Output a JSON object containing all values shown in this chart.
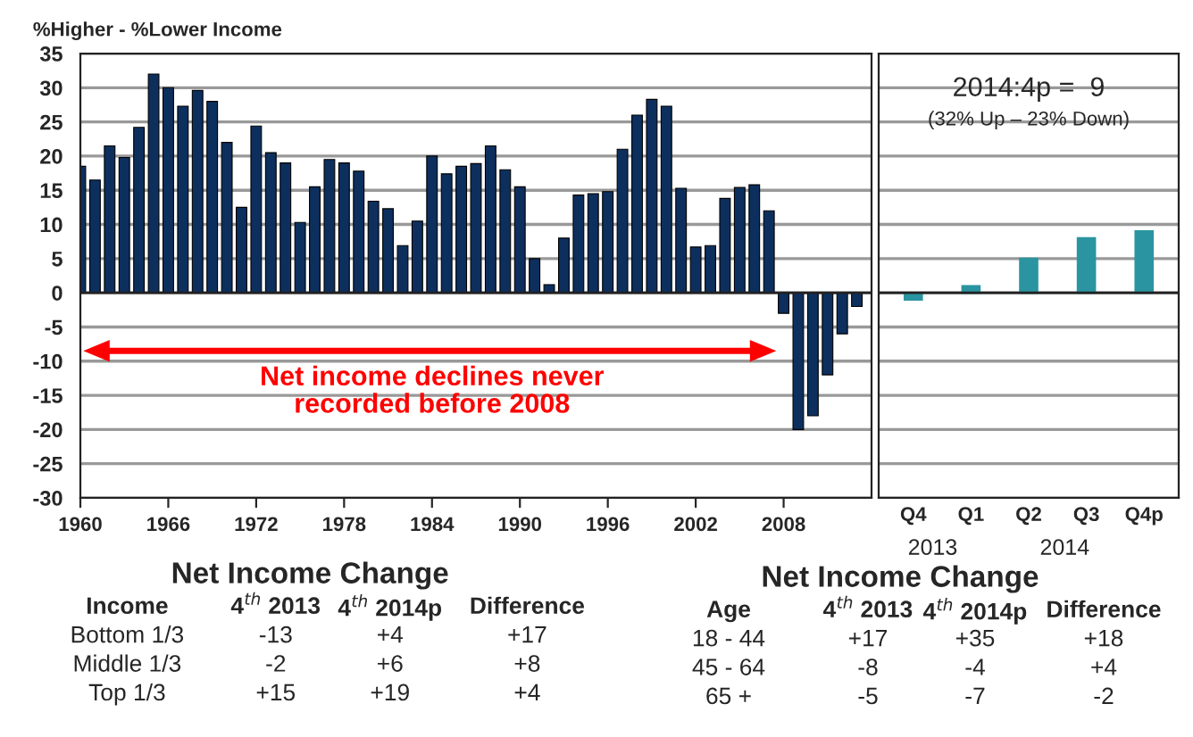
{
  "chart_data": [
    {
      "type": "bar",
      "ylabel": "%Higher - %Lower Income",
      "x": [
        1960,
        1961,
        1962,
        1963,
        1964,
        1965,
        1966,
        1967,
        1968,
        1969,
        1970,
        1971,
        1972,
        1973,
        1974,
        1975,
        1976,
        1977,
        1978,
        1979,
        1980,
        1981,
        1982,
        1983,
        1984,
        1985,
        1986,
        1987,
        1988,
        1989,
        1990,
        1991,
        1992,
        1993,
        1994,
        1995,
        1996,
        1997,
        1998,
        1999,
        2000,
        2001,
        2002,
        2003,
        2004,
        2005,
        2006,
        2007,
        2008,
        2009,
        2010,
        2011,
        2012,
        2013
      ],
      "series": [
        {
          "color": "#0d2f5e",
          "values": [
            18.5,
            16.5,
            21.5,
            19.8,
            24.2,
            32,
            30,
            27.3,
            29.6,
            28,
            22,
            12.5,
            24.4,
            20.5,
            19,
            10.3,
            15.5,
            19.5,
            19,
            17.8,
            13.4,
            12.3,
            6.9,
            10.5,
            20,
            17.4,
            18.5,
            18.9,
            21.5,
            18,
            15.5,
            5,
            1.2,
            8,
            14.3,
            14.5,
            14.8,
            21,
            26,
            28.3,
            27.3,
            15.3,
            6.7,
            6.9,
            13.8,
            15.4,
            15.8,
            12,
            -3,
            -20,
            -18,
            -12,
            -6,
            -2
          ]
        }
      ],
      "xlim": [
        1960,
        2014
      ],
      "xticks": [
        1960,
        1966,
        1972,
        1978,
        1984,
        1990,
        1996,
        2002,
        2008
      ],
      "ylim": [
        -30,
        35
      ],
      "yticks": [
        -30,
        -25,
        -20,
        -15,
        -10,
        -5,
        0,
        5,
        10,
        15,
        20,
        25,
        30,
        35
      ],
      "grid": "y",
      "annotations": [
        "Net income declines never\nrecorded before 2008"
      ]
    },
    {
      "type": "bar",
      "categories": [
        "Q4",
        "Q1",
        "Q2",
        "Q3",
        "Q4p"
      ],
      "series": [
        {
          "color": "#2a95a0",
          "values": [
            -1,
            1,
            5,
            8,
            9
          ]
        }
      ],
      "ylim": [
        -30,
        35
      ],
      "yticks": [
        -30,
        -25,
        -20,
        -15,
        -10,
        -5,
        0,
        5,
        10,
        15,
        20,
        25,
        30,
        35
      ],
      "grid": "y",
      "tick_labels": "x",
      "annotations": [
        "2014:4p =  9",
        "(32% Up – 23% Down)",
        "2013",
        "2014"
      ]
    },
    {
      "type": "other",
      "title": "Net Income Change",
      "annotations": [
        "Income",
        "4$^{th}$ 2013",
        "4$^{th}$ 2014p",
        "Difference",
        "Bottom 1/3",
        "-13",
        "+4",
        "+17",
        "Middle 1/3",
        "-2",
        "+6",
        "+8",
        "Top 1/3",
        "+15",
        "+19",
        "+4"
      ]
    },
    {
      "type": "other",
      "title": "Net Income Change",
      "annotations": [
        "Age",
        "4$^{th}$ 2013",
        "4$^{th}$ 2014p",
        "Difference",
        "18 - 44",
        "+17",
        "+35",
        "+18",
        "45 - 64",
        "-8",
        "-4",
        "+4",
        "65 +",
        "-5",
        "-7",
        "-2"
      ]
    }
  ]
}
